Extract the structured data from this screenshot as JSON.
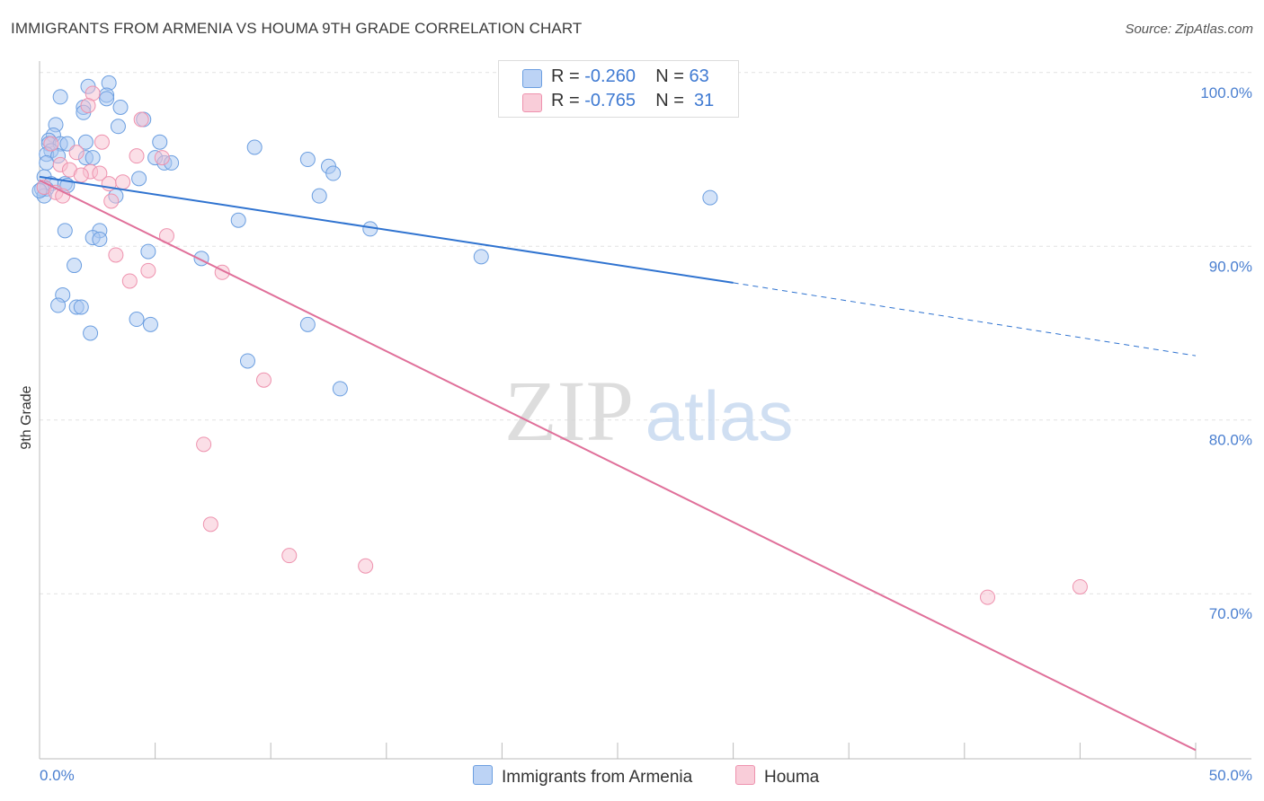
{
  "header": {
    "title": "IMMIGRANTS FROM ARMENIA VS HOUMA 9TH GRADE CORRELATION CHART",
    "source": "Source: ZipAtlas.com"
  },
  "legend": {
    "series_a": {
      "r_label": "R =",
      "r_value": "-0.260",
      "n_label": "N =",
      "n_value": "63"
    },
    "series_b": {
      "r_label": "R =",
      "r_value": "-0.765",
      "n_label": "N =",
      "n_value": "31"
    }
  },
  "watermark": {
    "zip": "ZIP",
    "atlas": "atlas"
  },
  "colors": {
    "blue_fill": "#a9c7f2",
    "blue_stroke": "#6b9ee0",
    "blue_line": "#2f73d0",
    "pink_fill": "#f7bfd0",
    "pink_stroke": "#ee92ae",
    "pink_line": "#e0709a",
    "tick_text": "#4a7fd0",
    "grid": "#e2e2e2"
  },
  "chart_data": {
    "type": "scatter",
    "ylabel": "9th Grade",
    "xlim": [
      0,
      50
    ],
    "ylim": [
      60.5,
      100.3
    ],
    "x_tick_labels": [
      {
        "value": 0,
        "label": "0.0%"
      },
      {
        "value": 50,
        "label": "50.0%"
      }
    ],
    "y_tick_labels": [
      {
        "value": 100,
        "label": "100.0%"
      },
      {
        "value": 90,
        "label": "90.0%"
      },
      {
        "value": 80,
        "label": "80.0%"
      },
      {
        "value": 70,
        "label": "70.0%"
      }
    ],
    "grid": true,
    "legend_position": "top-center",
    "series": [
      {
        "name": "Immigrants from Armenia",
        "color": "#a9c7f2",
        "points": [
          [
            2.1,
            99.2
          ],
          [
            3.0,
            99.4
          ],
          [
            0.9,
            98.6
          ],
          [
            2.9,
            98.7
          ],
          [
            2.9,
            98.5
          ],
          [
            1.9,
            98.0
          ],
          [
            3.5,
            98.0
          ],
          [
            1.9,
            97.7
          ],
          [
            4.5,
            97.3
          ],
          [
            3.4,
            96.9
          ],
          [
            0.7,
            97.0
          ],
          [
            0.6,
            96.4
          ],
          [
            0.4,
            96.1
          ],
          [
            0.4,
            95.9
          ],
          [
            0.9,
            95.9
          ],
          [
            2.0,
            96.0
          ],
          [
            5.2,
            96.0
          ],
          [
            1.2,
            95.9
          ],
          [
            9.3,
            95.7
          ],
          [
            0.5,
            95.5
          ],
          [
            0.3,
            95.3
          ],
          [
            0.8,
            95.2
          ],
          [
            2.0,
            95.1
          ],
          [
            2.3,
            95.1
          ],
          [
            5.0,
            95.1
          ],
          [
            5.4,
            94.8
          ],
          [
            5.7,
            94.8
          ],
          [
            11.6,
            95.0
          ],
          [
            12.5,
            94.6
          ],
          [
            12.7,
            94.2
          ],
          [
            0.2,
            94.0
          ],
          [
            4.3,
            93.9
          ],
          [
            0.5,
            93.6
          ],
          [
            1.1,
            93.6
          ],
          [
            1.2,
            93.5
          ],
          [
            0.3,
            93.3
          ],
          [
            3.3,
            92.9
          ],
          [
            12.1,
            92.9
          ],
          [
            29.0,
            92.8
          ],
          [
            8.6,
            91.5
          ],
          [
            14.3,
            91.0
          ],
          [
            1.1,
            90.9
          ],
          [
            2.6,
            90.9
          ],
          [
            2.3,
            90.5
          ],
          [
            2.6,
            90.4
          ],
          [
            4.7,
            89.7
          ],
          [
            7.0,
            89.3
          ],
          [
            19.1,
            89.4
          ],
          [
            1.5,
            88.9
          ],
          [
            1.0,
            87.2
          ],
          [
            0.8,
            86.6
          ],
          [
            1.6,
            86.5
          ],
          [
            1.8,
            86.5
          ],
          [
            4.2,
            85.8
          ],
          [
            4.8,
            85.5
          ],
          [
            11.6,
            85.5
          ],
          [
            2.2,
            85.0
          ],
          [
            9.0,
            83.4
          ],
          [
            13.0,
            81.8
          ],
          [
            0.1,
            93.3
          ],
          [
            0.2,
            92.9
          ],
          [
            0.0,
            93.2
          ],
          [
            0.3,
            94.8
          ]
        ]
      },
      {
        "name": "Houma",
        "color": "#f7bfd0",
        "points": [
          [
            2.3,
            98.8
          ],
          [
            2.1,
            98.1
          ],
          [
            4.4,
            97.3
          ],
          [
            2.7,
            96.0
          ],
          [
            0.5,
            95.9
          ],
          [
            1.6,
            95.4
          ],
          [
            4.2,
            95.2
          ],
          [
            5.3,
            95.1
          ],
          [
            0.9,
            94.7
          ],
          [
            1.3,
            94.4
          ],
          [
            2.2,
            94.3
          ],
          [
            1.8,
            94.1
          ],
          [
            2.6,
            94.2
          ],
          [
            3.0,
            93.6
          ],
          [
            3.6,
            93.7
          ],
          [
            3.1,
            92.6
          ],
          [
            5.5,
            90.6
          ],
          [
            3.3,
            89.5
          ],
          [
            4.7,
            88.6
          ],
          [
            7.9,
            88.5
          ],
          [
            3.9,
            88.0
          ],
          [
            9.7,
            82.3
          ],
          [
            7.1,
            78.6
          ],
          [
            7.4,
            74.0
          ],
          [
            10.8,
            72.2
          ],
          [
            14.1,
            71.6
          ],
          [
            41.0,
            69.8
          ],
          [
            45.0,
            70.4
          ],
          [
            0.2,
            93.4
          ],
          [
            0.7,
            93.1
          ],
          [
            1.0,
            92.9
          ]
        ]
      }
    ],
    "trendlines": [
      {
        "series": "Immigrants from Armenia",
        "solid": [
          [
            0,
            94.0
          ],
          [
            30,
            87.9
          ]
        ],
        "dashed": [
          [
            30,
            87.9
          ],
          [
            50,
            83.7
          ]
        ]
      },
      {
        "series": "Houma",
        "solid": [
          [
            0,
            93.8
          ],
          [
            50,
            61.0
          ]
        ]
      }
    ]
  }
}
